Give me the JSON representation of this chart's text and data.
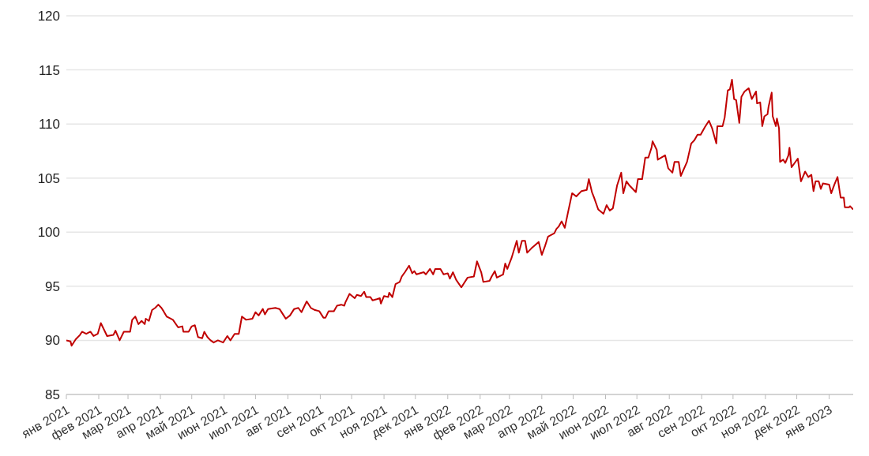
{
  "chart_data": {
    "type": "line",
    "x": [
      "2021-01-01",
      "2021-01-05",
      "2021-01-06",
      "2021-01-10",
      "2021-01-14",
      "2021-01-16",
      "2021-01-20",
      "2021-01-24",
      "2021-01-27",
      "2021-01-31",
      "2021-02-03",
      "2021-02-09",
      "2021-02-15",
      "2021-02-17",
      "2021-02-21",
      "2021-02-25",
      "2021-03-03",
      "2021-03-05",
      "2021-03-08",
      "2021-03-11",
      "2021-03-14",
      "2021-03-17",
      "2021-03-18",
      "2021-03-21",
      "2021-03-24",
      "2021-03-27",
      "2021-03-30",
      "2021-04-02",
      "2021-04-04",
      "2021-04-07",
      "2021-04-09",
      "2021-04-13",
      "2021-04-18",
      "2021-04-22",
      "2021-04-23",
      "2021-04-28",
      "2021-05-01",
      "2021-05-04",
      "2021-05-07",
      "2021-05-11",
      "2021-05-13",
      "2021-05-16",
      "2021-05-19",
      "2021-05-22",
      "2021-05-26",
      "2021-05-31",
      "2021-06-04",
      "2021-06-07",
      "2021-06-11",
      "2021-06-15",
      "2021-06-18",
      "2021-06-22",
      "2021-06-28",
      "2021-07-01",
      "2021-07-04",
      "2021-07-08",
      "2021-07-10",
      "2021-07-13",
      "2021-07-20",
      "2021-07-24",
      "2021-07-28",
      "2021-07-30",
      "2021-08-03",
      "2021-08-07",
      "2021-08-11",
      "2021-08-14",
      "2021-08-16",
      "2021-08-19",
      "2021-08-23",
      "2021-08-27",
      "2021-08-31",
      "2021-09-04",
      "2021-09-06",
      "2021-09-09",
      "2021-09-14",
      "2021-09-17",
      "2021-09-21",
      "2021-09-24",
      "2021-09-25",
      "2021-09-29",
      "2021-10-04",
      "2021-10-06",
      "2021-10-10",
      "2021-10-13",
      "2021-10-15",
      "2021-10-19",
      "2021-10-21",
      "2021-10-25",
      "2021-10-28",
      "2021-10-29",
      "2021-11-01",
      "2021-11-05",
      "2021-11-06",
      "2021-11-09",
      "2021-11-12",
      "2021-11-16",
      "2021-11-18",
      "2021-11-21",
      "2021-11-25",
      "2021-11-28",
      "2021-11-30",
      "2021-12-02",
      "2021-12-09",
      "2021-12-11",
      "2021-12-15",
      "2021-12-18",
      "2021-12-20",
      "2021-12-25",
      "2021-12-28",
      "2022-01-01",
      "2022-01-03",
      "2022-01-06",
      "2022-01-09",
      "2022-01-14",
      "2022-01-20",
      "2022-01-26",
      "2022-01-29",
      "2022-02-02",
      "2022-02-04",
      "2022-02-10",
      "2022-02-12",
      "2022-02-15",
      "2022-02-17",
      "2022-02-23",
      "2022-02-25",
      "2022-02-27",
      "2022-03-03",
      "2022-03-08",
      "2022-03-10",
      "2022-03-13",
      "2022-03-16",
      "2022-03-18",
      "2022-03-22",
      "2022-03-29",
      "2022-04-01",
      "2022-04-04",
      "2022-04-07",
      "2022-04-13",
      "2022-04-15",
      "2022-04-17",
      "2022-04-20",
      "2022-04-23",
      "2022-04-26",
      "2022-04-30",
      "2022-05-04",
      "2022-05-09",
      "2022-05-14",
      "2022-05-16",
      "2022-05-19",
      "2022-05-21",
      "2022-05-25",
      "2022-05-30",
      "2022-06-02",
      "2022-06-05",
      "2022-06-08",
      "2022-06-12",
      "2022-06-16",
      "2022-06-18",
      "2022-06-21",
      "2022-06-24",
      "2022-06-30",
      "2022-07-02",
      "2022-07-06",
      "2022-07-09",
      "2022-07-12",
      "2022-07-15",
      "2022-07-16",
      "2022-07-20",
      "2022-07-21",
      "2022-07-28",
      "2022-07-31",
      "2022-08-04",
      "2022-08-06",
      "2022-08-10",
      "2022-08-12",
      "2022-08-18",
      "2022-08-22",
      "2022-08-25",
      "2022-08-28",
      "2022-08-31",
      "2022-09-04",
      "2022-09-08",
      "2022-09-11",
      "2022-09-13",
      "2022-09-15",
      "2022-09-16",
      "2022-09-21",
      "2022-09-23",
      "2022-09-26",
      "2022-09-28",
      "2022-09-30",
      "2022-10-02",
      "2022-10-04",
      "2022-10-07",
      "2022-10-09",
      "2022-10-12",
      "2022-10-16",
      "2022-10-19",
      "2022-10-23",
      "2022-10-24",
      "2022-10-27",
      "2022-10-29",
      "2022-10-31",
      "2022-11-03",
      "2022-11-04",
      "2022-11-07",
      "2022-11-08",
      "2022-11-11",
      "2022-11-12",
      "2022-11-14",
      "2022-11-15",
      "2022-11-18",
      "2022-11-20",
      "2022-11-23",
      "2022-11-24",
      "2022-11-26",
      "2022-12-02",
      "2022-12-05",
      "2022-12-09",
      "2022-12-12",
      "2022-12-15",
      "2022-12-17",
      "2022-12-19",
      "2022-12-22",
      "2022-12-24",
      "2022-12-26",
      "2023-01-01",
      "2023-01-03",
      "2023-01-06",
      "2023-01-09",
      "2023-01-11",
      "2023-01-12",
      "2023-01-15",
      "2023-01-16",
      "2023-01-20",
      "2023-01-21",
      "2023-01-24"
    ],
    "series": [
      {
        "color": "#c00000",
        "values": [
          90.0,
          89.9,
          89.5,
          90.1,
          90.5,
          90.8,
          90.6,
          90.8,
          90.4,
          90.6,
          91.6,
          90.4,
          90.5,
          90.9,
          90.0,
          90.8,
          90.8,
          91.9,
          92.2,
          91.5,
          91.8,
          91.5,
          92.0,
          91.8,
          92.8,
          93.0,
          93.3,
          93.0,
          92.7,
          92.2,
          92.1,
          91.9,
          91.2,
          91.3,
          90.8,
          90.8,
          91.3,
          91.4,
          90.3,
          90.2,
          90.8,
          90.3,
          90.0,
          89.8,
          90.0,
          89.8,
          90.4,
          90.0,
          90.6,
          90.6,
          92.2,
          91.9,
          92.0,
          92.6,
          92.3,
          92.9,
          92.4,
          92.9,
          93.0,
          92.9,
          92.3,
          92.0,
          92.3,
          92.9,
          93.0,
          92.6,
          93.0,
          93.6,
          93.0,
          92.8,
          92.7,
          92.1,
          92.1,
          92.7,
          92.7,
          93.2,
          93.3,
          93.2,
          93.5,
          94.3,
          93.9,
          94.2,
          94.1,
          94.5,
          94.0,
          94.0,
          93.7,
          93.8,
          93.9,
          93.4,
          94.1,
          94.0,
          94.4,
          94.0,
          95.2,
          95.4,
          95.9,
          96.3,
          96.9,
          96.2,
          96.4,
          96.1,
          96.3,
          96.1,
          96.6,
          96.1,
          96.6,
          96.6,
          96.1,
          96.2,
          95.7,
          96.3,
          95.6,
          94.9,
          95.8,
          95.9,
          97.3,
          96.3,
          95.4,
          95.5,
          95.9,
          96.4,
          95.8,
          96.1,
          97.1,
          96.6,
          97.6,
          99.2,
          98.1,
          99.2,
          99.2,
          98.1,
          98.5,
          99.1,
          97.9,
          98.7,
          99.6,
          99.9,
          100.3,
          100.5,
          101.0,
          100.4,
          101.8,
          103.6,
          103.3,
          103.8,
          103.9,
          104.9,
          103.7,
          103.2,
          102.1,
          101.7,
          102.5,
          102.0,
          102.2,
          104.3,
          105.5,
          103.6,
          104.7,
          104.3,
          103.7,
          104.9,
          104.9,
          106.9,
          106.9,
          107.8,
          108.4,
          107.6,
          106.7,
          107.1,
          105.9,
          105.5,
          106.5,
          106.5,
          105.2,
          106.5,
          108.2,
          108.5,
          109.0,
          109.0,
          109.7,
          110.3,
          109.6,
          108.9,
          108.2,
          109.8,
          109.8,
          110.6,
          113.1,
          113.2,
          114.1,
          112.3,
          112.2,
          110.1,
          112.5,
          113.0,
          113.3,
          112.3,
          113.0,
          111.9,
          112.0,
          109.8,
          110.7,
          110.9,
          111.6,
          112.9,
          110.7,
          109.8,
          110.5,
          109.6,
          106.5,
          106.7,
          106.4,
          107.1,
          107.8,
          106.0,
          106.8,
          104.7,
          105.6,
          105.1,
          105.3,
          103.8,
          104.7,
          104.7,
          104.0,
          104.5,
          104.4,
          103.6,
          104.4,
          105.1,
          103.8,
          103.2,
          103.2,
          102.3,
          102.3,
          102.4,
          102.1
        ]
      }
    ],
    "xlim": [
      "2021-01-01",
      "2023-01-24"
    ],
    "xticks": [
      {
        "value": "2021-01-01",
        "label": "янв 2021"
      },
      {
        "value": "2021-02-01",
        "label": "фев 2021"
      },
      {
        "value": "2021-03-01",
        "label": "мар 2021"
      },
      {
        "value": "2021-04-01",
        "label": "апр 2021"
      },
      {
        "value": "2021-05-01",
        "label": "май 2021"
      },
      {
        "value": "2021-06-01",
        "label": "июн 2021"
      },
      {
        "value": "2021-07-01",
        "label": "июл 2021"
      },
      {
        "value": "2021-08-01",
        "label": "авг 2021"
      },
      {
        "value": "2021-09-01",
        "label": "сен 2021"
      },
      {
        "value": "2021-10-01",
        "label": "окт 2021"
      },
      {
        "value": "2021-11-01",
        "label": "ноя 2021"
      },
      {
        "value": "2021-12-01",
        "label": "дек 2021"
      },
      {
        "value": "2022-01-01",
        "label": "янв 2022"
      },
      {
        "value": "2022-02-01",
        "label": "фев 2022"
      },
      {
        "value": "2022-03-01",
        "label": "мар 2022"
      },
      {
        "value": "2022-04-01",
        "label": "апр 2022"
      },
      {
        "value": "2022-05-01",
        "label": "май 2022"
      },
      {
        "value": "2022-06-01",
        "label": "июн 2022"
      },
      {
        "value": "2022-07-01",
        "label": "июл 2022"
      },
      {
        "value": "2022-08-01",
        "label": "авг 2022"
      },
      {
        "value": "2022-09-01",
        "label": "сен 2022"
      },
      {
        "value": "2022-10-01",
        "label": "окт 2022"
      },
      {
        "value": "2022-11-01",
        "label": "ноя 2022"
      },
      {
        "value": "2022-12-01",
        "label": "дек 2022"
      },
      {
        "value": "2023-01-01",
        "label": "янв 2023"
      }
    ],
    "ylim": [
      85,
      120
    ],
    "yticks": [
      85,
      90,
      95,
      100,
      105,
      110,
      115,
      120
    ],
    "grid": "y",
    "legend": false,
    "marker": "none",
    "line_style": "solid"
  }
}
